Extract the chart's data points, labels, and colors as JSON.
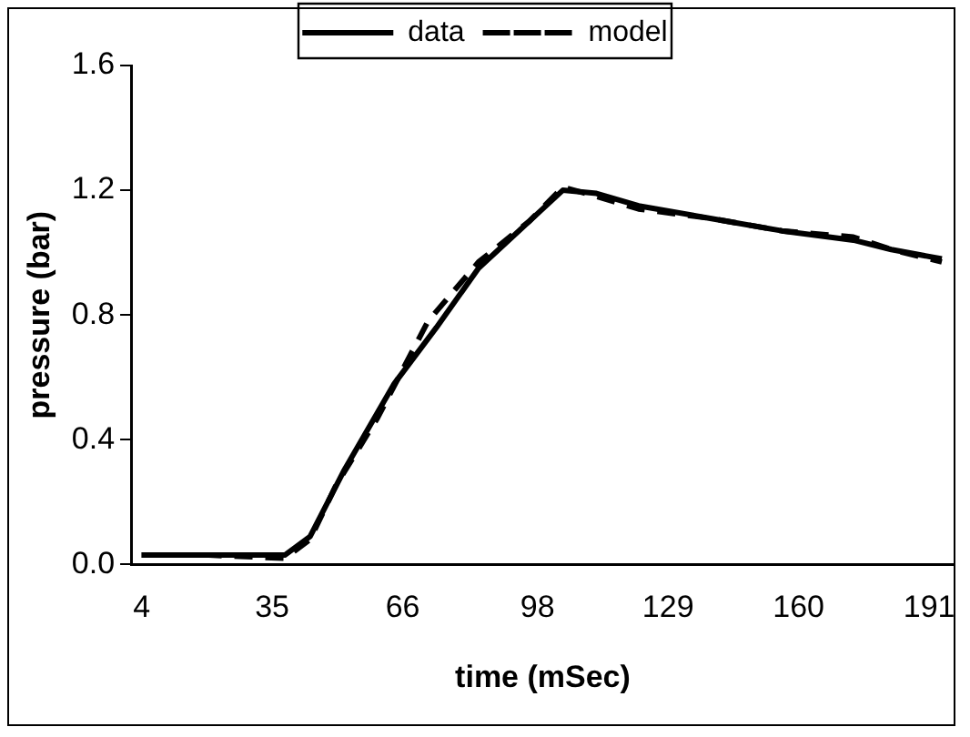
{
  "chart_data": {
    "type": "line",
    "xlabel": "time (mSec)",
    "ylabel": "pressure (bar)",
    "xlim": [
      1.5,
      197
    ],
    "xticks": [
      4,
      35,
      66,
      98,
      129,
      160,
      191
    ],
    "ylim": [
      0,
      1.6
    ],
    "yticks": [
      {
        "value": 0,
        "label": "0.0"
      },
      {
        "value": 0.4,
        "label": "0.4"
      },
      {
        "value": 0.8,
        "label": "0.8"
      },
      {
        "value": 1.2,
        "label": "1.2"
      },
      {
        "value": 1.6,
        "label": "1.6"
      }
    ],
    "grid": false,
    "legend": "top",
    "marker": "none",
    "series": [
      {
        "name": "data",
        "color": "#000000",
        "line_style": "solid",
        "x": [
          4,
          20,
          38,
          44,
          52,
          64,
          74,
          84,
          96,
          104,
          112,
          122,
          139,
          156,
          173,
          182,
          194
        ],
        "values": [
          0.03,
          0.03,
          0.03,
          0.09,
          0.3,
          0.58,
          0.76,
          0.95,
          1.1,
          1.2,
          1.19,
          1.15,
          1.11,
          1.07,
          1.04,
          1.01,
          0.98
        ]
      },
      {
        "name": "model",
        "color": "#000000",
        "line_style": "dashed",
        "x": [
          4,
          20,
          38,
          44,
          50,
          60,
          72,
          84,
          96,
          104,
          112,
          122,
          139,
          156,
          173,
          182,
          194
        ],
        "values": [
          0.03,
          0.03,
          0.02,
          0.08,
          0.25,
          0.47,
          0.78,
          0.97,
          1.1,
          1.21,
          1.18,
          1.14,
          1.11,
          1.07,
          1.05,
          1.01,
          0.97
        ]
      }
    ]
  }
}
